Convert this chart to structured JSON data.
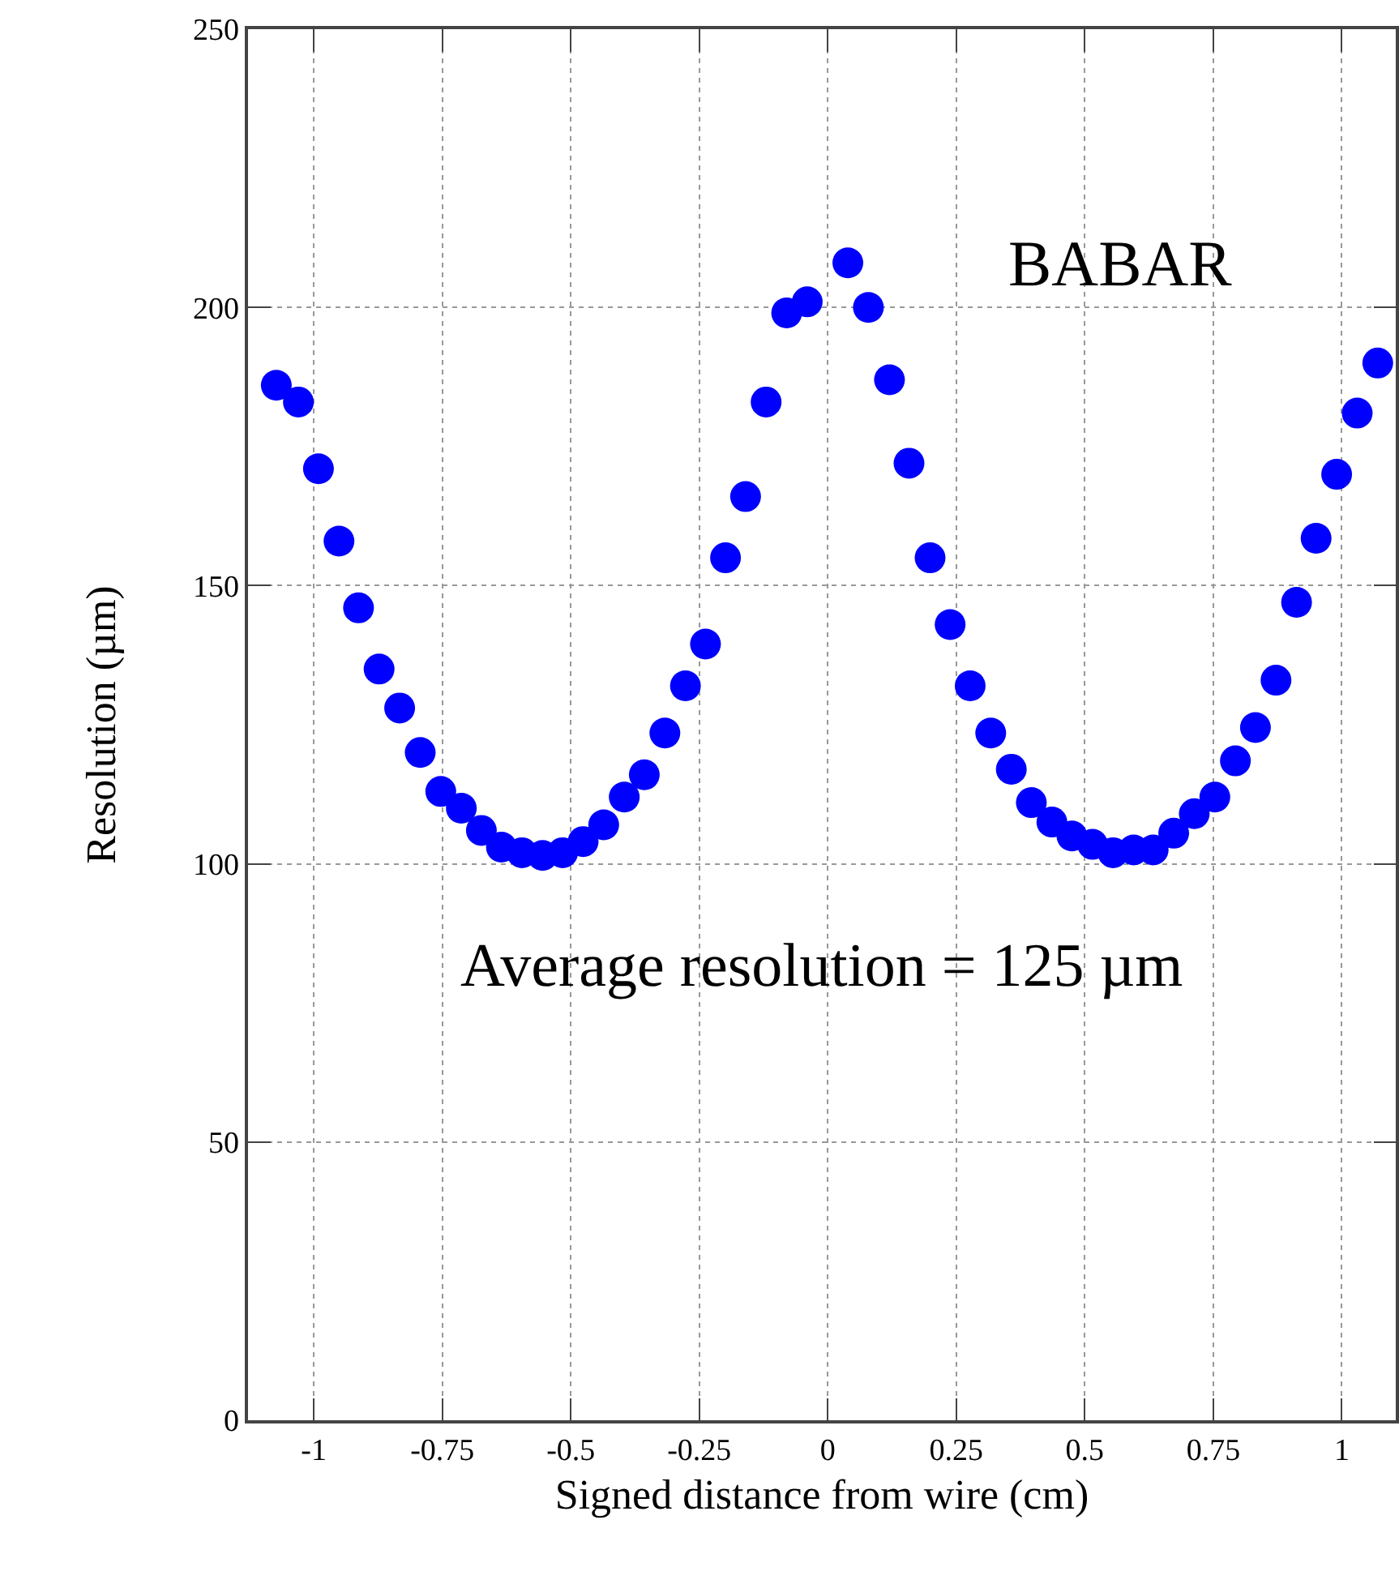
{
  "chart_data": {
    "type": "scatter",
    "xlabel": "Signed distance from wire (cm)",
    "ylabel": "Resolution (µm)",
    "annotations": [
      "BABAR",
      "Average resolution = 125 µm"
    ],
    "x": [
      -1.073,
      -1.03,
      -0.991,
      -0.951,
      -0.913,
      -0.873,
      -0.833,
      -0.793,
      -0.753,
      -0.713,
      -0.674,
      -0.635,
      -0.595,
      -0.555,
      -0.516,
      -0.476,
      -0.436,
      -0.396,
      -0.357,
      -0.317,
      -0.277,
      -0.238,
      -0.199,
      -0.16,
      -0.12,
      -0.08,
      -0.04,
      0.039,
      0.079,
      0.12,
      0.158,
      0.199,
      0.238,
      0.277,
      0.317,
      0.357,
      0.396,
      0.436,
      0.475,
      0.515,
      0.555,
      0.595,
      0.633,
      0.673,
      0.713,
      0.753,
      0.793,
      0.832,
      0.872,
      0.912,
      0.95,
      0.99,
      1.03,
      1.07
    ],
    "series": [
      {
        "color": "#0000ff",
        "values": [
          186,
          183,
          171,
          158,
          146,
          135,
          128,
          120,
          113,
          110,
          106,
          103,
          102,
          101.5,
          102,
          104,
          107,
          112,
          116,
          123.5,
          132,
          139.5,
          155,
          166,
          183,
          199,
          201,
          208,
          200,
          187,
          172,
          155,
          143,
          132,
          123.5,
          117,
          111,
          107.5,
          105,
          103.5,
          102,
          102.5,
          102.5,
          105.5,
          109,
          112,
          118.5,
          124.5,
          133,
          147,
          158.5,
          170,
          181,
          190
        ]
      }
    ],
    "xlim": [
      -1.128,
      1.105
    ],
    "ylim": [
      0,
      250
    ],
    "xticks": [
      -1,
      -0.75,
      -0.5,
      -0.25,
      0,
      0.25,
      0.5,
      0.75,
      1
    ],
    "yticks": [
      0,
      50,
      100,
      150,
      200,
      250
    ],
    "grid": true,
    "marker": "circle"
  }
}
